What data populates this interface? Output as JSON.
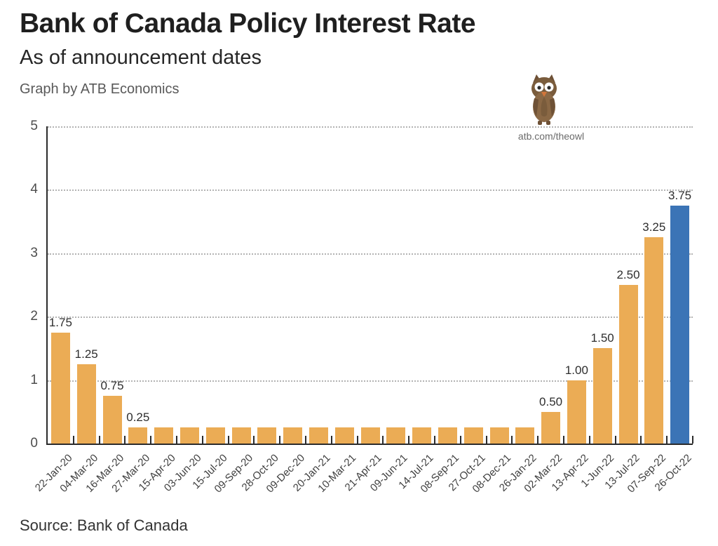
{
  "page": {
    "title": "Bank of Canada Policy Interest Rate",
    "subtitle": "As of announcement dates",
    "attribution": "Graph by ATB Economics",
    "owl_caption": "atb.com/theowl",
    "source": "Source: Bank of Canada"
  },
  "colors": {
    "bar_orange": "#EBAC55",
    "bar_blue": "#3B74B6",
    "axis": "#2B2B2B",
    "gridline": "#B3B3B3",
    "title_text": "#1F1F1F",
    "muted_text": "#595959",
    "owl_body": "#8A6845",
    "owl_dark": "#6E5136",
    "owl_beak": "#D2763B"
  },
  "chart_data": {
    "type": "bar",
    "title": "Bank of Canada Policy Interest Rate",
    "subtitle": "As of announcement dates",
    "xlabel": "",
    "ylabel": "",
    "ylim": [
      0,
      5
    ],
    "yticks": [
      0,
      1,
      2,
      3,
      4,
      5
    ],
    "grid": "horizontal-dotted",
    "legend": "none",
    "bar_color": "#EBAC55",
    "highlight_color": "#3B74B6",
    "highlight_index": 24,
    "categories": [
      "22-Jan-20",
      "04-Mar-20",
      "16-Mar-20",
      "27-Mar-20",
      "15-Apr-20",
      "03-Jun-20",
      "15-Jul-20",
      "09-Sep-20",
      "28-Oct-20",
      "09-Dec-20",
      "20-Jan-21",
      "10-Mar-21",
      "21-Apr-21",
      "09-Jun-21",
      "14-Jul-21",
      "08-Sep-21",
      "27-Oct-21",
      "08-Dec-21",
      "26-Jan-22",
      "02-Mar-22",
      "13-Apr-22",
      "1-Jun-22",
      "13-Jul-22",
      "07-Sep-22",
      "26-Oct-22"
    ],
    "values": [
      1.75,
      1.25,
      0.75,
      0.25,
      0.25,
      0.25,
      0.25,
      0.25,
      0.25,
      0.25,
      0.25,
      0.25,
      0.25,
      0.25,
      0.25,
      0.25,
      0.25,
      0.25,
      0.25,
      0.5,
      1.0,
      1.5,
      2.5,
      3.25,
      3.75
    ],
    "data_labels": [
      "1.75",
      "1.25",
      "0.75",
      "0.25",
      null,
      null,
      null,
      null,
      null,
      null,
      null,
      null,
      null,
      null,
      null,
      null,
      null,
      null,
      null,
      "0.50",
      "1.00",
      "1.50",
      "2.50",
      "3.25",
      "3.75"
    ]
  }
}
